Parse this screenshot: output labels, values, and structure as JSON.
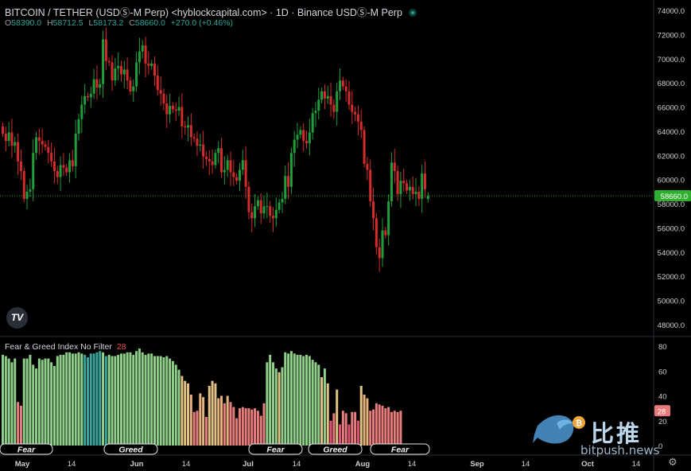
{
  "header": {
    "title": "BITCOIN / TETHER (USDⓈ-M Perp) <hyblockcapital.com> · 1D · Binance USDⓈ-M Perp",
    "ohlc": [
      {
        "label": "O",
        "value": "58390.0"
      },
      {
        "label": "H",
        "value": "58712.5"
      },
      {
        "label": "L",
        "value": "58173.2"
      },
      {
        "label": "C",
        "value": "58660.0"
      }
    ],
    "change": "+270.0 (+0.46%)"
  },
  "indicator": {
    "name": "Fear & Greed Index No Filter",
    "value": "28"
  },
  "colors": {
    "up": "#26a69a",
    "down": "#ef5350",
    "price_line": "#2fb02f",
    "green_candle": "#1f9e3a",
    "red_candle": "#d52b2b"
  },
  "chart_data": [
    {
      "type": "candlestick",
      "title": "BITCOIN / TETHER (USDⓈ-M Perp) <hyblockcapital.com> · 1D · Binance USDⓈ-M Perp",
      "ylim": [
        47500,
        75000
      ],
      "y_ticks": [
        "74000.0",
        "72000.0",
        "70000.0",
        "68000.0",
        "66000.0",
        "64000.0",
        "62000.0",
        "60000.0",
        "58000.0",
        "56000.0",
        "54000.0",
        "52000.0",
        "50000.0",
        "48000.0"
      ],
      "x_tick_labels": [
        "May",
        "14",
        "Jun",
        "14",
        "Jul",
        "14",
        "Aug",
        "14",
        "Sep",
        "14",
        "Oct",
        "14"
      ],
      "last_price_label": "58660.0",
      "close_values": [
        63800,
        63200,
        63900,
        62800,
        63100,
        61500,
        60700,
        58400,
        59000,
        59200,
        62200,
        63500,
        63200,
        62900,
        62700,
        62200,
        61500,
        60700,
        60200,
        61200,
        61000,
        60600,
        61600,
        61100,
        63800,
        65000,
        66200,
        66900,
        66800,
        67100,
        68300,
        67600,
        67900,
        71600,
        69800,
        69700,
        68200,
        69200,
        69400,
        68700,
        69100,
        68200,
        67300,
        67700,
        69700,
        70600,
        71100,
        69600,
        69400,
        69600,
        68600,
        67400,
        67100,
        66300,
        65400,
        66100,
        65800,
        65700,
        66000,
        64400,
        64300,
        64500,
        63500,
        63400,
        62800,
        62900,
        61900,
        61700,
        61500,
        61200,
        62200,
        62600,
        60600,
        60800,
        61600,
        60600,
        60200,
        59900,
        60800,
        61600,
        59400,
        57300,
        56800,
        57800,
        58300,
        57200,
        57800,
        57800,
        57000,
        56800,
        57500,
        58100,
        58400,
        60300,
        59400,
        62200,
        63300,
        63700,
        64100,
        63200,
        63000,
        63900,
        65500,
        65700,
        66600,
        67300,
        66700,
        66900,
        66200,
        65600,
        67300,
        68200,
        67700,
        67300,
        66200,
        65600,
        65400,
        64800,
        64100,
        61300,
        60800,
        58200,
        56800,
        54400,
        53500,
        55800,
        55400,
        58200,
        61400,
        60700,
        58800,
        59900,
        59700,
        59100,
        59400,
        58800,
        59000,
        58400,
        60500,
        59200,
        58660
      ],
      "open_values": [
        64400,
        63800,
        63200,
        63900,
        62800,
        63100,
        61500,
        60700,
        58400,
        59000,
        59200,
        62200,
        63500,
        63200,
        62900,
        62700,
        62200,
        61500,
        60700,
        60200,
        61200,
        61000,
        60600,
        61600,
        61100,
        63800,
        65000,
        66200,
        66900,
        66800,
        67100,
        68300,
        67600,
        67900,
        71600,
        69800,
        69700,
        68200,
        69200,
        69400,
        68700,
        69100,
        68200,
        67300,
        67700,
        69700,
        70600,
        71100,
        69600,
        69400,
        69600,
        68600,
        67400,
        67100,
        66300,
        65400,
        66100,
        65800,
        65700,
        66000,
        64400,
        64300,
        64500,
        63500,
        63400,
        62800,
        62900,
        61900,
        61700,
        61500,
        61200,
        62200,
        62600,
        60600,
        60800,
        61600,
        60600,
        60200,
        59900,
        60800,
        61600,
        59400,
        57300,
        56800,
        57800,
        58300,
        57200,
        57800,
        57800,
        57000,
        56800,
        57500,
        58100,
        58400,
        60300,
        59400,
        62200,
        63300,
        63700,
        64100,
        63200,
        63000,
        63900,
        65500,
        65700,
        66600,
        67300,
        66700,
        66900,
        66200,
        65600,
        67300,
        68200,
        67700,
        67300,
        66200,
        65600,
        65400,
        64800,
        64100,
        61300,
        60800,
        58200,
        56800,
        54400,
        53500,
        55800,
        55400,
        58200,
        61400,
        60700,
        58800,
        59900,
        59700,
        59100,
        59400,
        58800,
        59000,
        58400,
        60500,
        58390
      ]
    },
    {
      "type": "bar",
      "title": "Fear & Greed Index No Filter",
      "ylim": [
        0,
        85
      ],
      "y_ticks": [
        "80",
        "60",
        "40",
        "20",
        "0"
      ],
      "last_value_label": "28",
      "zone_labels": [
        "Fear",
        "Greed",
        "Fear",
        "Greed",
        "Fear"
      ],
      "values": [
        73,
        72,
        70,
        67,
        70,
        35,
        32,
        70,
        70,
        73,
        65,
        62,
        70,
        69,
        70,
        70,
        67,
        64,
        72,
        73,
        73,
        75,
        75,
        74,
        74,
        75,
        74,
        73,
        71,
        74,
        74,
        75,
        76,
        75,
        72,
        73,
        72,
        72,
        73,
        74,
        74,
        75,
        75,
        73,
        76,
        78,
        75,
        73,
        74,
        74,
        72,
        72,
        72,
        71,
        72,
        70,
        68,
        65,
        61,
        56,
        52,
        50,
        41,
        27,
        28,
        42,
        39,
        23,
        48,
        52,
        50,
        38,
        40,
        34,
        40,
        35,
        31,
        22,
        30,
        31,
        30,
        30,
        29,
        30,
        28,
        24,
        34,
        67,
        73,
        67,
        62,
        59,
        63,
        75,
        74,
        76,
        74,
        73,
        73,
        72,
        73,
        72,
        69,
        67,
        65,
        55,
        62,
        50,
        20,
        26,
        45,
        17,
        28,
        26,
        17,
        27,
        27,
        20,
        48,
        41,
        38,
        28,
        29,
        34,
        33,
        32,
        30,
        31,
        27,
        28,
        27,
        28
      ]
    }
  ]
}
